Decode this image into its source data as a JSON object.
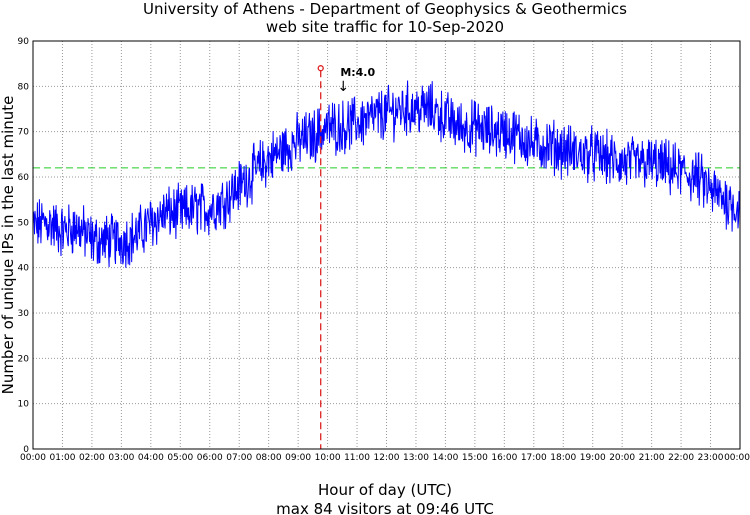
{
  "chart_data": {
    "type": "line",
    "title": "University of Athens - Department of Geophysics & Geothermics",
    "subtitle": "web site traffic for 10-Sep-2020",
    "xlabel": "Hour of day (UTC)",
    "ylabel": "Number of unique IPs in the last minute",
    "footer": "max 84 visitors at 09:46 UTC",
    "xlim_hours": [
      0,
      24
    ],
    "ylim": [
      0,
      90
    ],
    "y_ticks": [
      "0",
      "10",
      "20",
      "30",
      "40",
      "50",
      "60",
      "70",
      "80",
      "90"
    ],
    "x_ticks": [
      "00:00",
      "01:00",
      "02:00",
      "03:00",
      "04:00",
      "05:00",
      "06:00",
      "07:00",
      "08:00",
      "09:00",
      "10:00",
      "11:00",
      "12:00",
      "13:00",
      "14:00",
      "15:00",
      "16:00",
      "17:00",
      "18:00",
      "19:00",
      "20:00",
      "21:00",
      "22:00",
      "23:00",
      "00:00"
    ],
    "grid": true,
    "reference_line": {
      "value": 62,
      "color": "#22cc22",
      "style": "dashed"
    },
    "max_marker": {
      "time_hours": 9.767,
      "value": 84,
      "color": "#dd2222"
    },
    "annotation": {
      "text": "M:4.0",
      "time_hours": 10.5
    },
    "series": [
      {
        "name": "unique IPs",
        "color": "#0000ff",
        "x_hours": [
          0,
          0.5,
          1,
          1.5,
          2,
          2.5,
          3,
          3.5,
          4,
          4.5,
          5,
          5.5,
          6,
          6.5,
          7,
          7.5,
          8,
          8.5,
          9,
          9.5,
          10,
          10.5,
          11,
          11.5,
          12,
          12.5,
          13,
          13.5,
          14,
          14.5,
          15,
          15.5,
          16,
          16.5,
          17,
          17.5,
          18,
          18.5,
          19,
          19.5,
          20,
          20.5,
          21,
          21.5,
          22,
          22.5,
          23,
          23.5,
          24
        ],
        "values": [
          49,
          50,
          48,
          49,
          46,
          46,
          46,
          47,
          50,
          52,
          52,
          53,
          53,
          55,
          58,
          61,
          64,
          66,
          68,
          69,
          71,
          71,
          72,
          73,
          74,
          75,
          75,
          75,
          73,
          71,
          71,
          70,
          70,
          69,
          67,
          67,
          66,
          65,
          65,
          64,
          63,
          63,
          63,
          62,
          61,
          60,
          57,
          55,
          53
        ]
      }
    ]
  }
}
